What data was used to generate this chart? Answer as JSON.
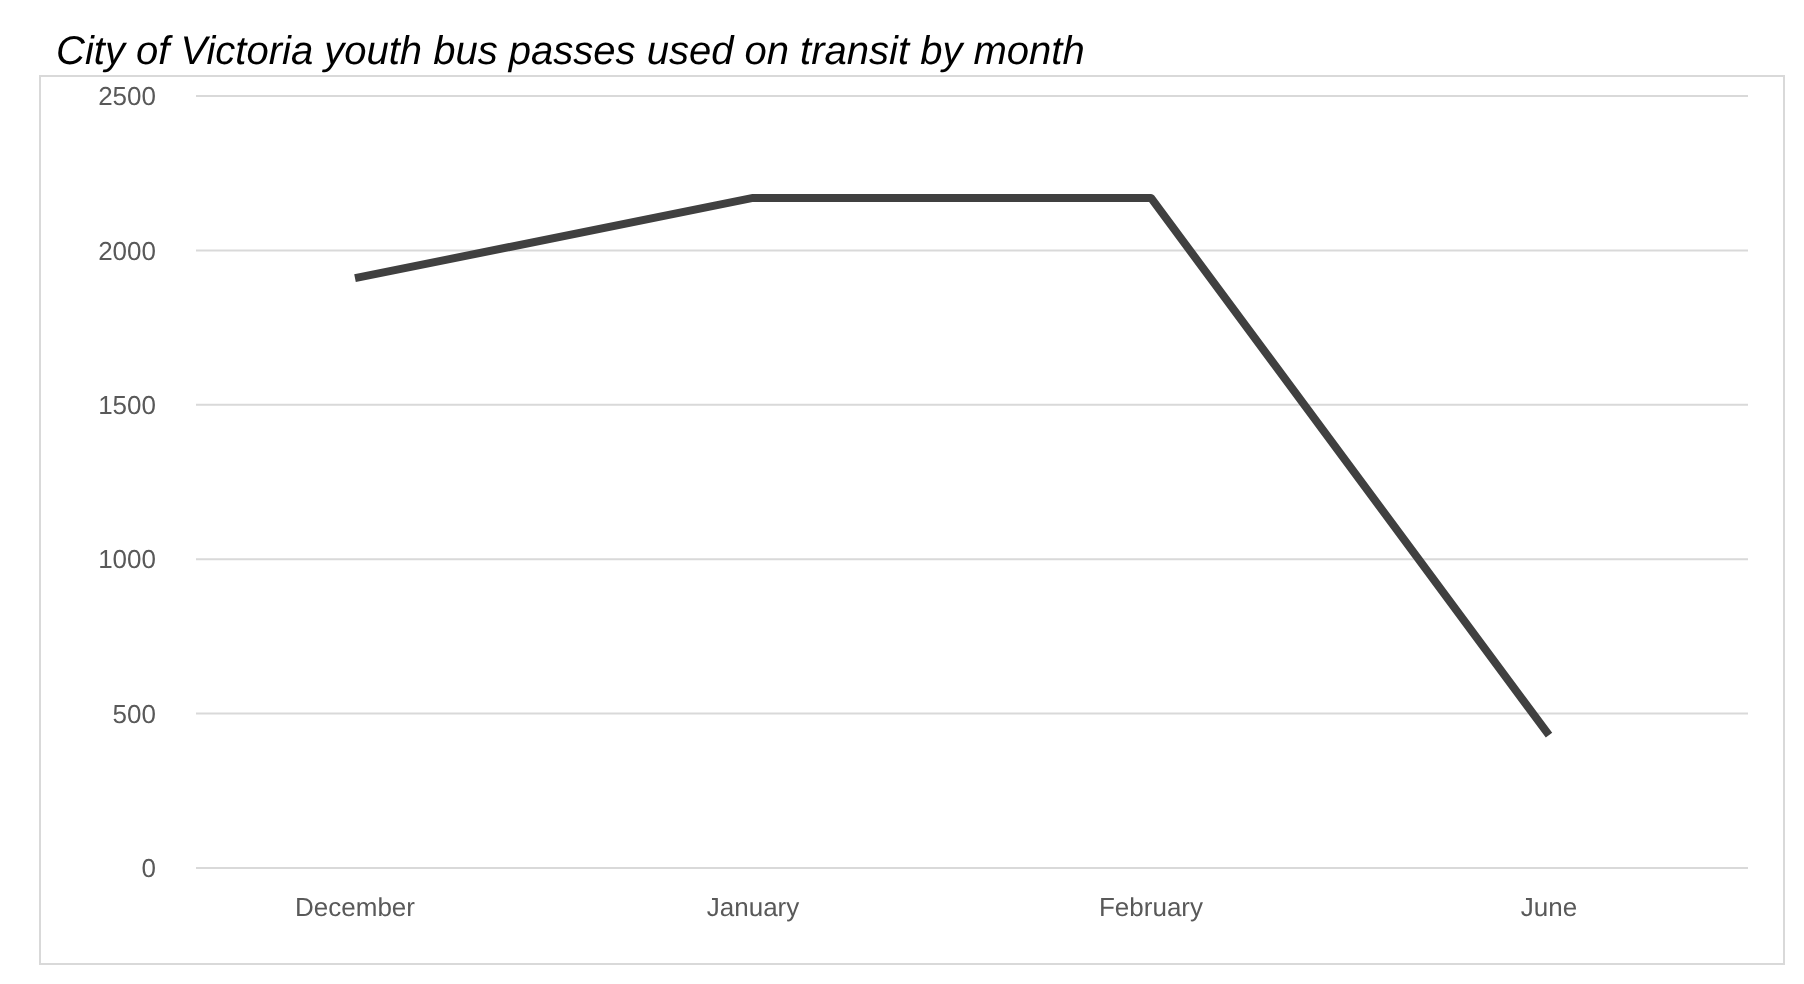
{
  "chart_data": {
    "type": "line",
    "title": "City of Victoria youth bus passes used on transit by month",
    "categories": [
      "December",
      "January",
      "February",
      "June"
    ],
    "series": [
      {
        "color": "#404040",
        "values": [
          1910,
          2170,
          2170,
          430
        ]
      }
    ],
    "ylim": [
      0,
      2500
    ],
    "yticks": [
      0,
      500,
      1000,
      1500,
      2000,
      2500
    ],
    "grid": "y",
    "marker": "none",
    "line_style": "solid"
  }
}
